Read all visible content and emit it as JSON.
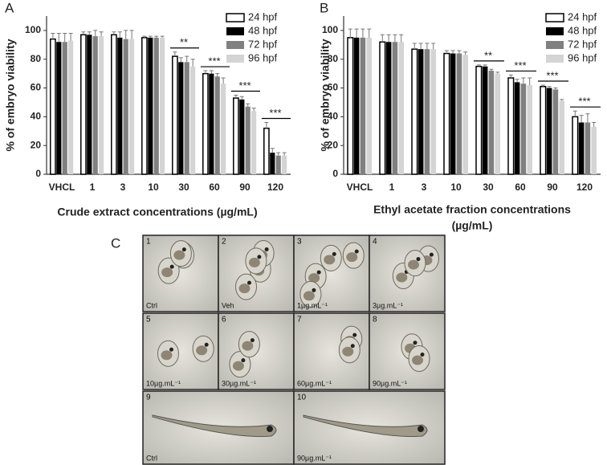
{
  "chart_data": [
    {
      "type": "bar",
      "panel": "A",
      "ylabel": "% of embryo viability",
      "xlabel": "Crude extract concentrations (µg/mL)",
      "categories": [
        "VHCL",
        "1",
        "3",
        "10",
        "30",
        "60",
        "90",
        "120"
      ],
      "ylim": [
        0,
        110
      ],
      "yticks": [
        0,
        20,
        40,
        60,
        80,
        100
      ],
      "legend": "upper right",
      "series": [
        {
          "name": "24 hpf",
          "color": "#ffffff",
          "edgecolor": "#000000",
          "values": [
            94,
            97,
            97,
            95,
            82,
            70,
            53,
            32
          ],
          "errors": [
            4,
            2,
            2,
            1,
            3,
            2,
            2,
            4
          ]
        },
        {
          "name": "48 hpf",
          "color": "#000000",
          "values": [
            92,
            97,
            95,
            95,
            78,
            70,
            52,
            15
          ],
          "errors": [
            6,
            2,
            4,
            1,
            3,
            2,
            2,
            3
          ]
        },
        {
          "name": "72 hpf",
          "color": "#808080",
          "values": [
            92,
            96,
            94,
            95,
            78,
            68,
            47,
            13
          ],
          "errors": [
            6,
            4,
            6,
            1,
            4,
            2,
            2,
            2
          ]
        },
        {
          "name": "96 hpf",
          "color": "#d4d4d4",
          "values": [
            93,
            96,
            94,
            95,
            75,
            63,
            44,
            13
          ],
          "errors": [
            5,
            3,
            6,
            1,
            5,
            4,
            2,
            2
          ]
        }
      ],
      "annotations": [
        {
          "text": "**",
          "category": "30"
        },
        {
          "text": "***",
          "category": "60"
        },
        {
          "text": "***",
          "category": "90"
        },
        {
          "text": "***",
          "category": "120"
        }
      ]
    },
    {
      "type": "bar",
      "panel": "B",
      "ylabel": "% of embryo viability",
      "xlabel": [
        "Ethyl acetate fraction concentrations",
        "(µg/mL)"
      ],
      "categories": [
        "VHCL",
        "1",
        "3",
        "10",
        "30",
        "60",
        "90",
        "120"
      ],
      "ylim": [
        0,
        110
      ],
      "yticks": [
        0,
        20,
        40,
        60,
        80,
        100
      ],
      "legend": "upper right",
      "series": [
        {
          "name": "24 hpf",
          "color": "#ffffff",
          "edgecolor": "#000000",
          "values": [
            95,
            92,
            87,
            84,
            75,
            67,
            61,
            40
          ],
          "errors": [
            6,
            5,
            4,
            2,
            1,
            2,
            1,
            4
          ]
        },
        {
          "name": "48 hpf",
          "color": "#000000",
          "values": [
            95,
            92,
            87,
            84,
            75,
            64,
            60,
            36
          ],
          "errors": [
            6,
            5,
            4,
            2,
            1,
            2,
            1,
            5
          ]
        },
        {
          "name": "72 hpf",
          "color": "#808080",
          "values": [
            95,
            92,
            87,
            84,
            72,
            63,
            59,
            36
          ],
          "errors": [
            6,
            5,
            4,
            2,
            1,
            4,
            1,
            6
          ]
        },
        {
          "name": "96 hpf",
          "color": "#d4d4d4",
          "values": [
            95,
            92,
            87,
            83,
            70,
            62,
            51,
            33
          ],
          "errors": [
            6,
            5,
            4,
            2,
            1,
            5,
            1,
            3
          ]
        }
      ],
      "annotations": [
        {
          "text": "**",
          "category": "30"
        },
        {
          "text": "***",
          "category": "60"
        },
        {
          "text": "***",
          "category": "90"
        },
        {
          "text": "***",
          "category": "120"
        }
      ]
    }
  ],
  "panel_c": {
    "label": "C",
    "images": [
      {
        "number": "1",
        "caption": "Ctrl"
      },
      {
        "number": "2",
        "caption": "Veh"
      },
      {
        "number": "3",
        "caption": "1µg.mL⁻¹"
      },
      {
        "number": "4",
        "caption": "3µg.mL⁻¹"
      },
      {
        "number": "5",
        "caption": "10µg.mL⁻¹"
      },
      {
        "number": "6",
        "caption": "30µg.mL⁻¹"
      },
      {
        "number": "7",
        "caption": "60µg.mL⁻¹"
      },
      {
        "number": "8",
        "caption": "90µg.mL⁻¹"
      },
      {
        "number": "9",
        "caption": "Ctrl"
      },
      {
        "number": "10",
        "caption": "90µg.mL⁻¹"
      }
    ]
  }
}
